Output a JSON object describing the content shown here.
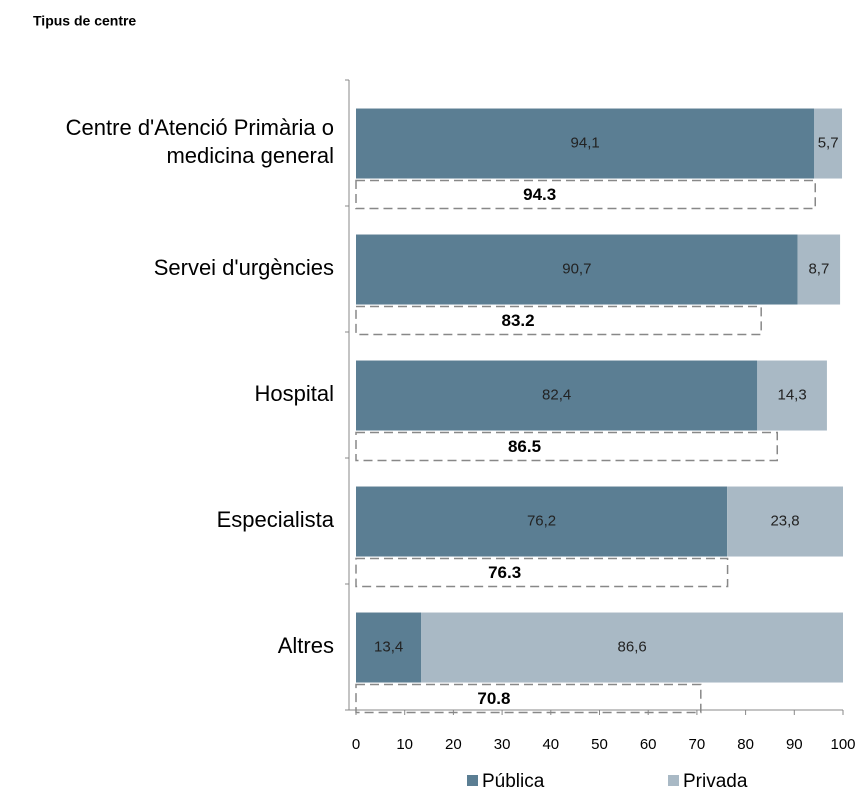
{
  "chart_data": {
    "type": "stacked_barh",
    "title": "Tipus de centre",
    "categories": [
      "Centre d'Atenció Primària o medicina general",
      "Servei d'urgències",
      "Hospital",
      "Especialista",
      "Altres"
    ],
    "series": [
      {
        "name": "Pública",
        "color": "#5b7e93",
        "values": [
          94.1,
          90.7,
          82.4,
          76.2,
          13.4
        ],
        "value_labels": [
          "94,1",
          "90,7",
          "82,4",
          "76,2",
          "13,4"
        ]
      },
      {
        "name": "Privada",
        "color": "#a9b9c5",
        "values": [
          5.7,
          8.7,
          14.3,
          23.8,
          86.6
        ],
        "value_labels": [
          "5,7",
          "8,7",
          "14,3",
          "23,8",
          "86,6"
        ]
      }
    ],
    "totals": {
      "values": [
        94.3,
        83.2,
        86.5,
        76.3,
        70.8
      ]
    },
    "xlim": [
      0,
      100
    ],
    "xticks": [
      0,
      10,
      20,
      30,
      40,
      50,
      60,
      70,
      80,
      90,
      100
    ],
    "legend": "bottom"
  }
}
